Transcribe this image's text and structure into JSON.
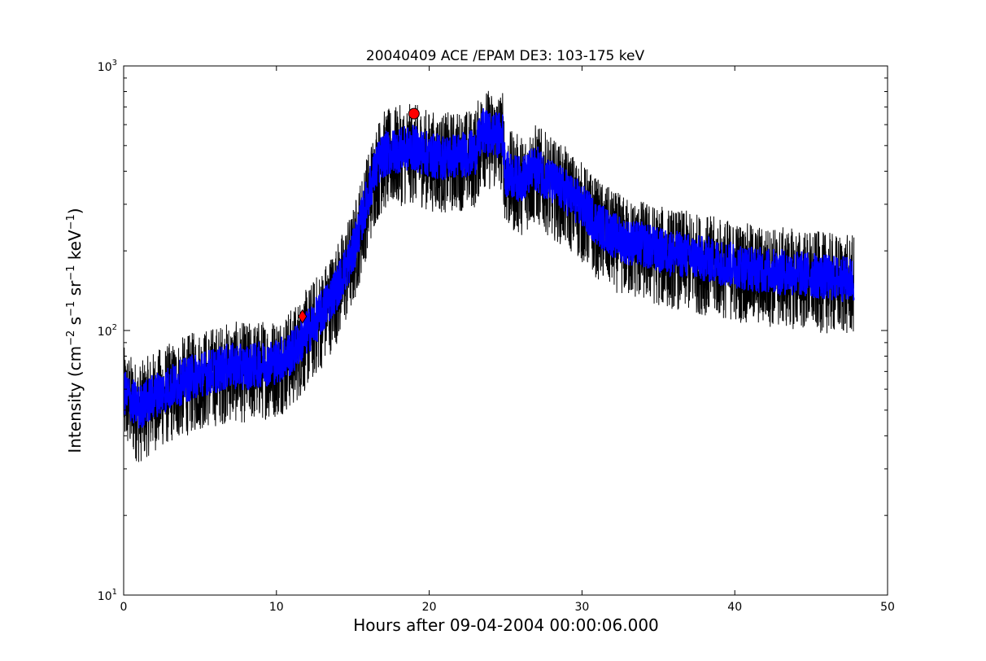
{
  "chart_data": {
    "type": "line",
    "title": "20040409 ACE /EPAM DE3: 103-175 keV",
    "xlabel": "Hours after 09-04-2004 00:00:06.000",
    "ylabel_main": "Intensity (cm",
    "ylabel_sup1": "−2",
    "ylabel_mid1": " s",
    "ylabel_sup2": "−1",
    "ylabel_mid2": " sr",
    "ylabel_sup3": "−1",
    "ylabel_mid3": " keV",
    "ylabel_sup4": "−1",
    "ylabel_end": ")",
    "xlim": [
      0,
      50
    ],
    "ylim": [
      10,
      1000
    ],
    "yscale": "log",
    "grid": false,
    "x_ticks": [
      0,
      10,
      20,
      30,
      40,
      50
    ],
    "x_tick_labels": [
      "0",
      "10",
      "20",
      "30",
      "40",
      "50"
    ],
    "y_ticks": [
      10,
      100,
      1000
    ],
    "y_tick_base": "10",
    "y_tick_exponents": [
      "1",
      "2",
      "3"
    ],
    "series": [
      {
        "style": "raw",
        "color": "#000000",
        "x": [
          0,
          1,
          2,
          3,
          4,
          5,
          6,
          7,
          8,
          9,
          10,
          11,
          12,
          13,
          14,
          15,
          15.8,
          16.5,
          17,
          18,
          19,
          20,
          21,
          22,
          23,
          23.5,
          24,
          24.8,
          25,
          26,
          27,
          28,
          29,
          30,
          31,
          32,
          33,
          34,
          35,
          36,
          37,
          38,
          39,
          40,
          41,
          42,
          43,
          44,
          45,
          46,
          47,
          47.8
        ],
        "y": [
          60,
          52,
          58,
          62,
          66,
          70,
          72,
          75,
          74,
          76,
          78,
          84,
          100,
          120,
          150,
          200,
          300,
          420,
          470,
          490,
          500,
          470,
          460,
          470,
          480,
          580,
          560,
          560,
          400,
          380,
          420,
          370,
          340,
          300,
          260,
          235,
          220,
          215,
          205,
          200,
          195,
          190,
          185,
          180,
          175,
          172,
          170,
          168,
          165,
          162,
          160,
          158
        ],
        "noise_low": 0.6,
        "noise_high": 1.45
      },
      {
        "style": "smoothed",
        "color": "#0000ff",
        "x": [
          0,
          1,
          2,
          3,
          4,
          5,
          6,
          7,
          8,
          9,
          10,
          11,
          12,
          13,
          14,
          15,
          15.8,
          16.5,
          17,
          18,
          19,
          20,
          21,
          22,
          23,
          23.5,
          24,
          24.8,
          25,
          26,
          27,
          28,
          29,
          30,
          31,
          32,
          33,
          34,
          35,
          36,
          37,
          38,
          39,
          40,
          41,
          42,
          43,
          44,
          45,
          46,
          47,
          47.8
        ],
        "y": [
          60,
          52,
          58,
          62,
          66,
          70,
          72,
          75,
          74,
          76,
          78,
          84,
          100,
          120,
          150,
          200,
          300,
          420,
          470,
          490,
          500,
          470,
          460,
          470,
          480,
          580,
          560,
          560,
          400,
          380,
          420,
          370,
          340,
          300,
          260,
          235,
          220,
          215,
          205,
          200,
          195,
          190,
          185,
          180,
          175,
          172,
          170,
          168,
          165,
          162,
          160,
          158
        ],
        "noise_low": 0.8,
        "noise_high": 1.2
      }
    ],
    "markers": [
      {
        "shape": "diamond",
        "x": 11.7,
        "y": 113,
        "color": "#ff0000"
      },
      {
        "shape": "circle",
        "x": 19.0,
        "y": 660,
        "color": "#ff0000"
      }
    ]
  }
}
